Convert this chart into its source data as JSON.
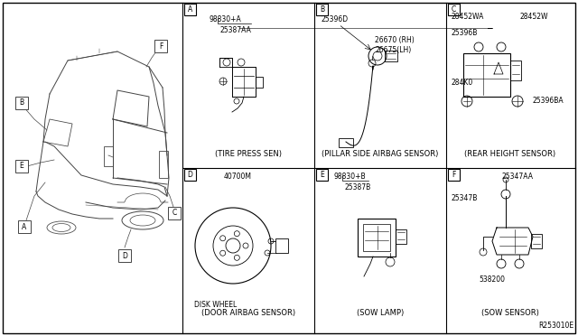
{
  "bg_color": "#ffffff",
  "border_color": "#000000",
  "text_color": "#000000",
  "fig_width": 6.4,
  "fig_height": 3.72,
  "dpi": 100,
  "ref_code": "R253010E",
  "panel_ids": [
    "A",
    "B",
    "C",
    "D",
    "E",
    "F"
  ],
  "panel_labels_top": [
    "(DOOR AIRBAG SENSOR)",
    "(SOW LAMP)",
    "(SOW SENSOR)"
  ],
  "panel_labels_bot": [
    "(TIRE PRESS SEN)",
    "(PILLAR SIDE AIRBAG SENSOR)",
    "(REAR HEIGHT SENSOR)"
  ],
  "parts_A": [
    "98830+A",
    "25387AA"
  ],
  "parts_B": [
    "25396D",
    "26670 (RH)",
    "26675(LH)"
  ],
  "parts_C": [
    "28452WA",
    "28452W",
    "25396B",
    "284K0",
    "25396BA"
  ],
  "parts_D": [
    "40700M",
    "DISK WHEEL"
  ],
  "parts_E": [
    "98830+B",
    "25387B"
  ],
  "parts_F": [
    "25347AA",
    "25347B",
    "538200"
  ]
}
